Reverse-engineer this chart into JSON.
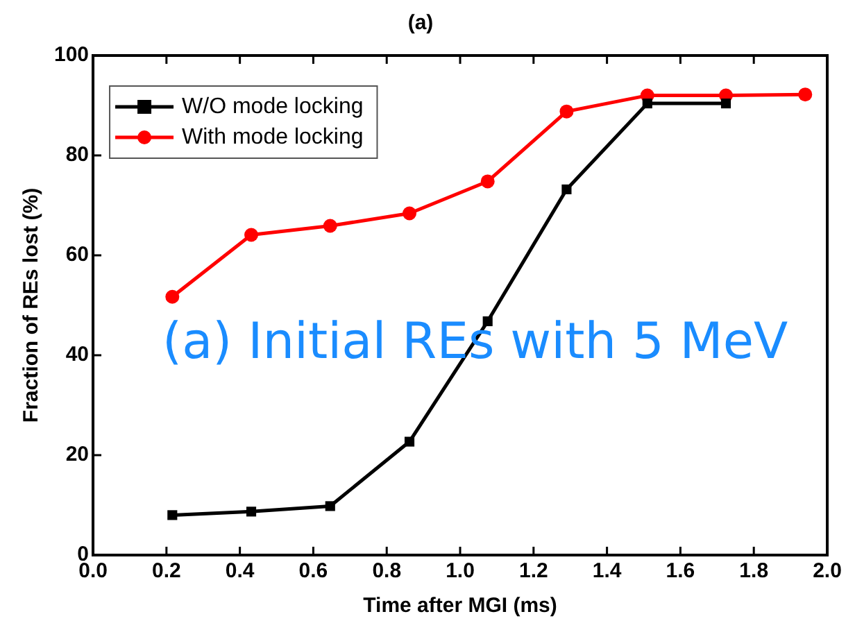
{
  "chart_data": {
    "type": "line",
    "title": "(a)",
    "xlabel": "Time after MGI (ms)",
    "ylabel": "Fraction of REs lost (%)",
    "x": [
      0.216,
      0.431,
      0.646,
      0.862,
      1.075,
      1.29,
      1.51,
      1.724
    ],
    "series": [
      {
        "name": "W/O mode locking",
        "color": "#000000",
        "marker": "square",
        "values": [
          8.0,
          8.7,
          9.8,
          22.7,
          46.8,
          73.2,
          90.4,
          90.4
        ]
      },
      {
        "name": "With mode locking",
        "color": "#ff0000",
        "marker": "circle",
        "x": [
          0.216,
          0.431,
          0.646,
          0.862,
          1.075,
          1.29,
          1.51,
          1.724,
          1.94
        ],
        "values": [
          51.7,
          64.1,
          65.9,
          68.4,
          74.8,
          88.8,
          92.0,
          92.0,
          92.2
        ]
      }
    ],
    "xlim": [
      0,
      2.0
    ],
    "xticks": [
      {
        "value": 0,
        "label": "0.0"
      },
      0.2,
      0.4,
      0.6,
      0.8,
      {
        "value": 1,
        "label": "1.0"
      },
      1.2,
      1.4,
      1.6,
      1.8,
      {
        "value": 2,
        "label": "2.0"
      }
    ],
    "ylim": [
      0,
      100
    ],
    "yticks": [
      0,
      20,
      40,
      60,
      80,
      100
    ],
    "grid": false,
    "legend": "top left",
    "line_style": "solid",
    "annotations": [
      "(a) Initial REs with 5 MeV"
    ]
  }
}
